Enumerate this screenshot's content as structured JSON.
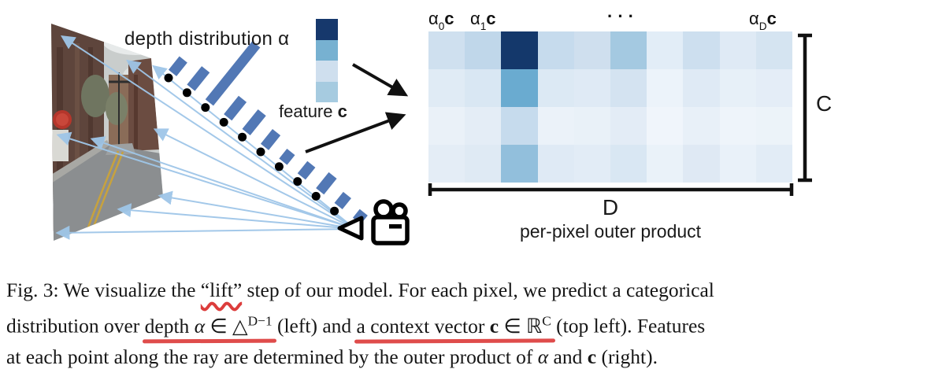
{
  "figure": {
    "depth_label": "depth distribution α",
    "feature_label": "feature",
    "feature_vec": "c",
    "colorbar_colors": [
      "#16386c",
      "#77b1d1",
      "#cfdfee",
      "#a6cbe0"
    ],
    "alpha_bar_lengths": [
      22,
      30,
      95,
      30,
      32,
      24,
      16,
      20,
      26,
      18,
      14
    ],
    "bar_color": "#5278b5",
    "ray_color": "#9fc6e8"
  },
  "heatmap": {
    "rows": 4,
    "cols": 10,
    "top_labels": {
      "a0": {
        "base": "α",
        "sub": "0",
        "vec": "c"
      },
      "a1": {
        "base": "α",
        "sub": "1",
        "vec": "c"
      },
      "dots": "···",
      "aD": {
        "base": "α",
        "sub": "D",
        "vec": "c"
      }
    },
    "cell_colors": [
      [
        "#cfe0ef",
        "#c0d7ea",
        "#14386b",
        "#c6dbed",
        "#cfdfee",
        "#a4c9e1",
        "#e2edf7",
        "#cddfef",
        "#dfeaf5",
        "#d5e4f1"
      ],
      [
        "#e0ebf5",
        "#d9e7f3",
        "#6aabd0",
        "#dce9f4",
        "#dfeaf5",
        "#d4e3f1",
        "#ecf3fa",
        "#dfeaf5",
        "#e7f0f8",
        "#e4edf7"
      ],
      [
        "#eaf1f8",
        "#e4edf6",
        "#c6dbed",
        "#ebf2f9",
        "#e9f1f8",
        "#e3ecf6",
        "#f0f5fb",
        "#e8f0f8",
        "#eef4fa",
        "#ecf3f9"
      ],
      [
        "#e4edf6",
        "#dfeaf4",
        "#92bfdc",
        "#dfeaf5",
        "#e2ecf6",
        "#d9e7f3",
        "#eaf2f9",
        "#dfe9f4",
        "#e9f1f9",
        "#e2ecf6"
      ]
    ],
    "c_bracket_label": "C",
    "d_bracket_label": "D",
    "bottom_caption": "per-pixel outer product"
  },
  "caption": {
    "lines": [
      [
        {
          "runs": [
            {
              "t": "Fig. 3: We visualize the "
            }
          ]
        },
        {
          "mark": "wavy",
          "runs": [
            {
              "t": "“lift”"
            }
          ]
        },
        {
          "runs": [
            {
              "t": " step of our model. For each pixel, we predict a categorical"
            }
          ]
        }
      ],
      [
        {
          "runs": [
            {
              "t": "distribution over "
            }
          ]
        },
        {
          "mark": "line",
          "runs": [
            {
              "t": "depth "
            },
            {
              "t": "α",
              "s": "i"
            },
            {
              "t": " ∈ △"
            },
            {
              "t": "D−1",
              "s": "sup"
            }
          ]
        },
        {
          "runs": [
            {
              "t": " (left) and "
            }
          ]
        },
        {
          "mark": "line",
          "runs": [
            {
              "t": "a context vector "
            },
            {
              "t": "c",
              "s": "b"
            },
            {
              "t": " ∈ ℝ"
            },
            {
              "t": "C",
              "s": "sup"
            }
          ]
        },
        {
          "runs": [
            {
              "t": " (top left). Features"
            }
          ]
        }
      ],
      [
        {
          "runs": [
            {
              "t": "at each point along the ray are determined by the outer product of "
            },
            {
              "t": "α",
              "s": "i"
            },
            {
              "t": " and "
            },
            {
              "t": "c",
              "s": "b"
            },
            {
              "t": " (right)."
            }
          ]
        }
      ]
    ],
    "annotation_color": "#dc3d3c"
  }
}
